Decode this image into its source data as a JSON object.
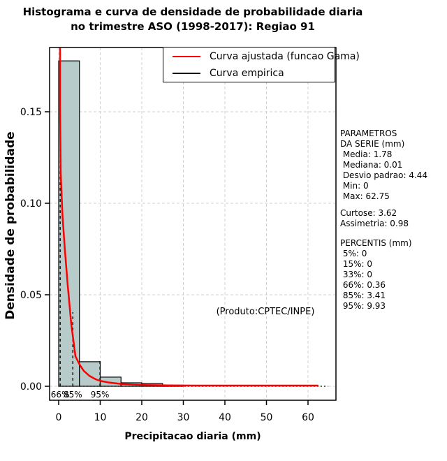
{
  "title": {
    "line1": "Histograma e curva de densidade de probabilidade diaria",
    "line2": "no trimestre ASO (1998-2017): Regiao 91"
  },
  "legend": {
    "items": [
      {
        "label": "Curva ajustada (funcao Gama)",
        "color": "#ff0000"
      },
      {
        "label": "Curva empirica",
        "color": "#000000"
      }
    ]
  },
  "axes": {
    "x_label": "Precipitacao diaria (mm)",
    "y_label": "Densidade de probabilidade"
  },
  "annotations": {
    "product": "(Produto:CPTEC/INPE)"
  },
  "stats_panel": {
    "series_block": [
      "PARAMETROS",
      "DA SERIE (mm)",
      " Media: 1.78",
      " Mediana: 0.01",
      " Desvio padrao: 4.44",
      " Min: 0",
      " Max: 62.75"
    ],
    "moments_block": [
      "Curtose: 3.62",
      "Assimetria: 0.98"
    ],
    "percentis_block": [
      "PERCENTIS (mm)",
      " 5%: 0",
      " 15%: 0",
      " 33%: 0",
      " 66%: 0.36",
      " 85%: 3.41",
      " 95%: 9.93"
    ]
  },
  "chart_data": {
    "type": "bar",
    "subtype": "histogram-with-density-curves",
    "title": "Histograma e curva de densidade de probabilidade diaria no trimestre ASO (1998-2017): Regiao 91",
    "xlabel": "Precipitacao diaria (mm)",
    "ylabel": "Densidade de probabilidade",
    "xlim": [
      -2,
      67
    ],
    "ylim": [
      -0.008,
      0.193
    ],
    "grid": true,
    "legend_position": "top-right",
    "x_ticks": [
      0,
      10,
      20,
      30,
      40,
      50,
      60
    ],
    "y_ticks": [
      0,
      0.05,
      0.1,
      0.15
    ],
    "y_tick_labels": [
      "0.00",
      "0.05",
      "0.10",
      "0.15"
    ],
    "histogram": {
      "bin_edges_mm": [
        0,
        5,
        10,
        15,
        20,
        25,
        30
      ],
      "densities": [
        0.1778,
        0.0134,
        0.005,
        0.0019,
        0.0015,
        0.0006
      ]
    },
    "fitted_curve": {
      "name": "Curva ajustada (funcao Gama)",
      "points": [
        [
          0.34,
          0.4
        ],
        [
          0.34,
          0.154
        ],
        [
          0.5,
          0.116
        ],
        [
          0.92,
          0.093
        ],
        [
          1.51,
          0.074
        ],
        [
          2.18,
          0.055
        ],
        [
          3.03,
          0.034
        ],
        [
          4.03,
          0.0164
        ],
        [
          5.04,
          0.0118
        ],
        [
          6.05,
          0.0084
        ],
        [
          7.39,
          0.0057
        ],
        [
          8.91,
          0.0038
        ],
        [
          10.08,
          0.0029
        ],
        [
          11.93,
          0.0021
        ],
        [
          14.96,
          0.0013
        ],
        [
          17.82,
          0.00095
        ],
        [
          21.18,
          0.00065
        ],
        [
          26.22,
          0.00046
        ],
        [
          32.94,
          0.00038
        ],
        [
          62.5,
          0.00038
        ]
      ]
    },
    "empirical_curve": {
      "name": "Curva empirica",
      "baseline_extent_mm": [
        0,
        64.8
      ],
      "baseline_density": 0.0
    },
    "percentile_markers": [
      {
        "label": "66%",
        "x_mm": 0.36,
        "line_top_density": 0.2
      },
      {
        "label": "85%",
        "x_mm": 3.41,
        "line_top_density": 0.0405
      },
      {
        "label": "95%",
        "x_mm": 9.93,
        "line_top_density": 0.0141
      }
    ],
    "series_stats": {
      "media": 1.78,
      "mediana": 0.01,
      "desvio_padrao": 4.44,
      "min": 0,
      "max": 62.75,
      "curtose": 3.62,
      "assimetria": 0.98,
      "percentis": {
        "5%": 0,
        "15%": 0,
        "33%": 0,
        "66%": 0.36,
        "85%": 3.41,
        "95%": 9.93
      }
    },
    "colors": {
      "bar_fill": "#b7cbca",
      "bar_border": "#000000",
      "fitted": "#ff0000",
      "empirical": "#000000",
      "grid": "#d0d0d0",
      "axis": "#000000"
    }
  }
}
